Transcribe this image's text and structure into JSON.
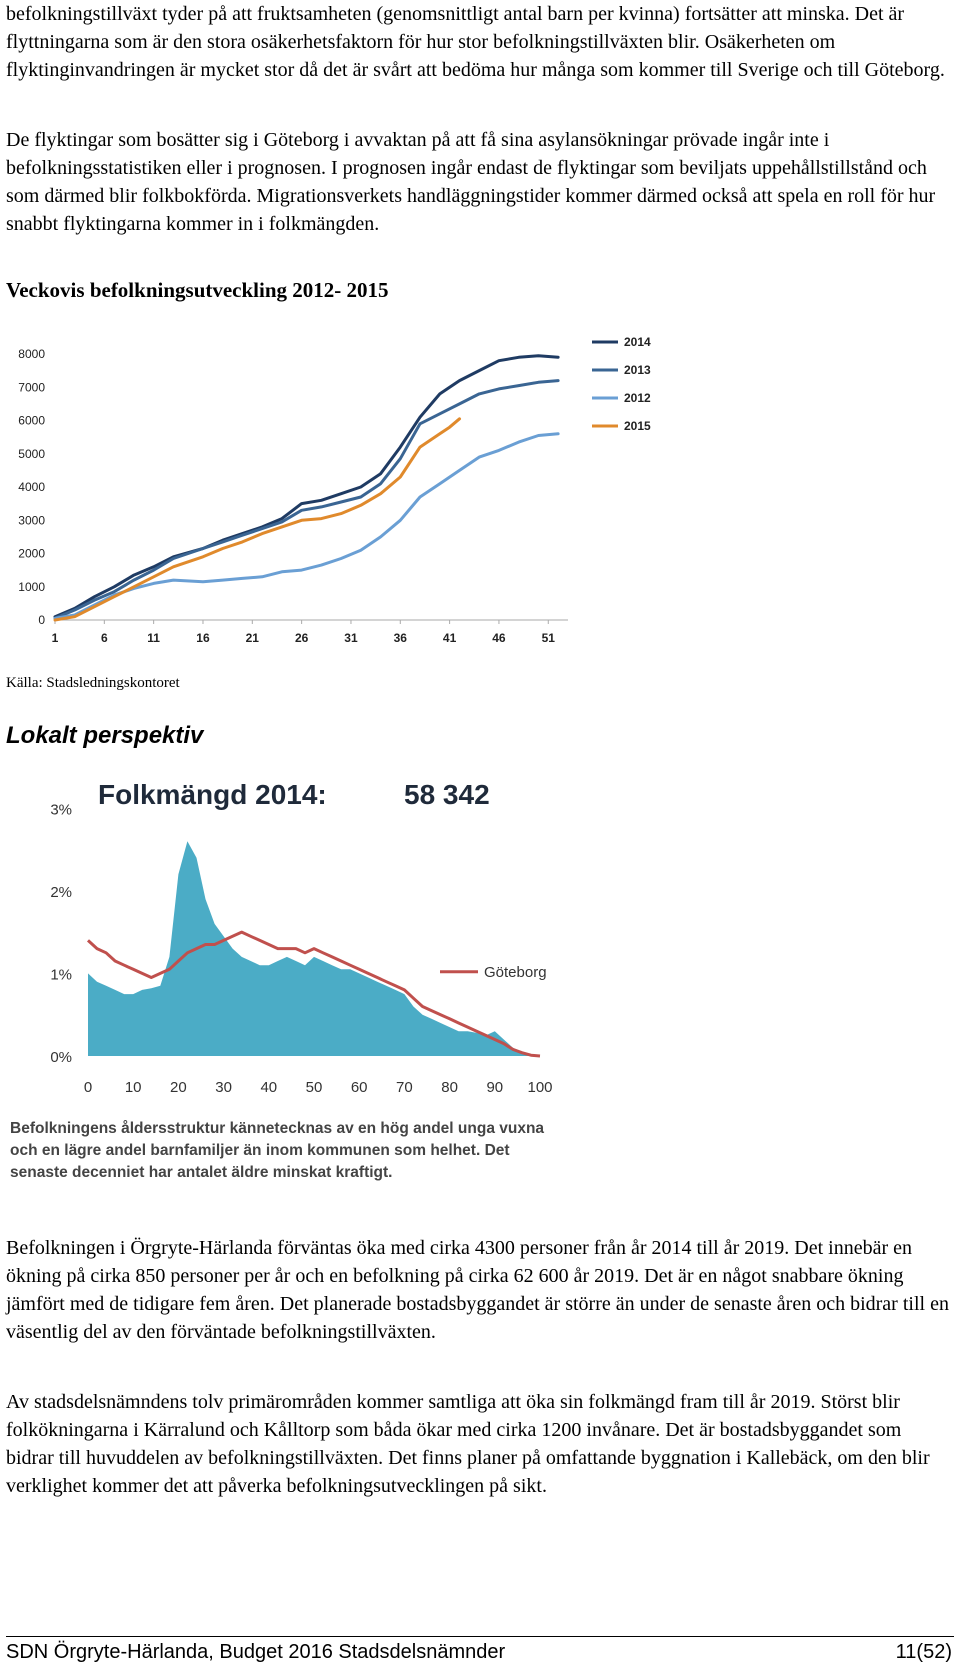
{
  "paragraphs": {
    "p1": "befolkningstillväxt tyder på att fruktsamheten (genomsnittligt antal barn per kvinna) fortsätter att minska. Det är flyttningarna som är den stora osäkerhetsfaktorn för hur stor befolkningstillväxten blir. Osäkerheten om flyktinginvandringen är mycket stor då det är svårt att bedöma hur många som kommer till Sverige och till Göteborg.",
    "p2": "De flyktingar som bosätter sig i Göteborg i avvaktan på att få sina asylansökningar prövade ingår inte i befolkningsstatistiken eller i prognosen. I prognosen ingår endast de flyktingar som beviljats uppehållstillstånd och som därmed blir folkbokförda. Migrationsverkets handläggningstider kommer därmed också att spela en roll för hur snabbt flyktingarna kommer in i folkmängden.",
    "p3": "Befolkningen i Örgryte-Härlanda förväntas öka med cirka 4300 personer från år 2014 till år 2019. Det innebär en ökning på cirka 850 personer per år och en befolkning på cirka 62 600 år 2019. Det är en något snabbare ökning jämfört med de tidigare fem åren. Det planerade bostadsbyggandet är större än under de senaste åren och bidrar till en väsentlig del av den förväntade befolkningstillväxten.",
    "p4": "Av stadsdelsnämndens tolv primärområden kommer samtliga att öka sin folkmängd fram till år 2019. Störst blir folkökningarna i Kärralund och Kålltorp som båda ökar med cirka 1200 invånare. Det är bostadsbyggandet som bidrar till huvuddelen av befolkningstillväxten. Det finns planer på omfattande byggnation i Kallebäck, om den blir verklighet kommer det att påverka befolkningsutvecklingen på sikt."
  },
  "headings": {
    "weekly": "Veckovis befolkningsutveckling 2012- 2015",
    "local": "Lokalt perspektiv"
  },
  "source_note": "Källa: Stadsledningskontoret",
  "chart_data": [
    {
      "type": "line",
      "title": "",
      "x_ticks": [
        1,
        6,
        11,
        16,
        21,
        26,
        31,
        36,
        41,
        46,
        51
      ],
      "ylim": [
        0,
        8000
      ],
      "y_ticks": [
        0,
        1000,
        2000,
        3000,
        4000,
        5000,
        6000,
        7000,
        8000
      ],
      "grid": false,
      "legend_position": "right",
      "series": [
        {
          "name": "2014",
          "color": "#1f3b63",
          "x": [
            1,
            3,
            5,
            7,
            9,
            11,
            13,
            16,
            18,
            20,
            22,
            24,
            26,
            28,
            30,
            32,
            34,
            36,
            38,
            40,
            42,
            44,
            46,
            48,
            50,
            52
          ],
          "values": [
            100,
            350,
            700,
            1000,
            1350,
            1600,
            1900,
            2150,
            2400,
            2600,
            2800,
            3050,
            3500,
            3600,
            3800,
            4000,
            4400,
            5200,
            6100,
            6800,
            7200,
            7500,
            7800,
            7900,
            7950,
            7900
          ]
        },
        {
          "name": "2013",
          "color": "#3a6593",
          "x": [
            1,
            3,
            5,
            7,
            9,
            11,
            13,
            16,
            18,
            20,
            22,
            24,
            26,
            28,
            30,
            32,
            34,
            36,
            38,
            40,
            42,
            44,
            46,
            48,
            50,
            52
          ],
          "values": [
            50,
            300,
            600,
            850,
            1200,
            1500,
            1850,
            2150,
            2350,
            2550,
            2750,
            2950,
            3300,
            3400,
            3550,
            3700,
            4100,
            4850,
            5900,
            6200,
            6500,
            6800,
            6950,
            7050,
            7150,
            7200
          ]
        },
        {
          "name": "2012",
          "color": "#6a9fd4",
          "x": [
            1,
            3,
            5,
            7,
            9,
            11,
            13,
            16,
            18,
            20,
            22,
            24,
            26,
            28,
            30,
            32,
            34,
            36,
            38,
            40,
            42,
            44,
            46,
            48,
            50,
            52
          ],
          "values": [
            50,
            150,
            450,
            750,
            950,
            1100,
            1200,
            1150,
            1200,
            1250,
            1300,
            1450,
            1500,
            1650,
            1850,
            2100,
            2500,
            3000,
            3700,
            4100,
            4500,
            4900,
            5100,
            5350,
            5550,
            5600
          ]
        },
        {
          "name": "2015",
          "color": "#e08a2c",
          "x": [
            1,
            3,
            5,
            7,
            9,
            11,
            13,
            16,
            18,
            20,
            22,
            24,
            26,
            28,
            30,
            32,
            34,
            36,
            38,
            40,
            41,
            42
          ],
          "values": [
            0,
            100,
            400,
            700,
            1000,
            1300,
            1600,
            1900,
            2150,
            2350,
            2600,
            2800,
            3000,
            3050,
            3200,
            3450,
            3800,
            4300,
            5200,
            5600,
            5800,
            6050
          ]
        }
      ]
    },
    {
      "type": "area",
      "title": "Folkmängd 2014:",
      "title_value": "58 342",
      "x_ticks": [
        0,
        10,
        20,
        30,
        40,
        50,
        60,
        70,
        80,
        90,
        100
      ],
      "y_ticks": [
        "0%",
        "1%",
        "2%",
        "3%"
      ],
      "ylim": [
        0,
        3.1
      ],
      "grid": false,
      "series": [
        {
          "name": "",
          "kind": "area",
          "color": "#4bacc6",
          "x": [
            0,
            2,
            4,
            6,
            8,
            10,
            12,
            14,
            16,
            18,
            20,
            22,
            24,
            26,
            28,
            30,
            32,
            34,
            36,
            38,
            40,
            42,
            44,
            46,
            48,
            50,
            52,
            54,
            56,
            58,
            60,
            62,
            64,
            66,
            68,
            70,
            72,
            74,
            76,
            78,
            80,
            82,
            84,
            86,
            88,
            90,
            92,
            94,
            96,
            98,
            100
          ],
          "values": [
            1.0,
            0.9,
            0.85,
            0.8,
            0.75,
            0.75,
            0.8,
            0.82,
            0.85,
            1.2,
            2.2,
            2.6,
            2.4,
            1.9,
            1.6,
            1.45,
            1.3,
            1.2,
            1.15,
            1.1,
            1.1,
            1.15,
            1.2,
            1.15,
            1.1,
            1.2,
            1.15,
            1.1,
            1.05,
            1.05,
            1.0,
            0.95,
            0.9,
            0.85,
            0.8,
            0.75,
            0.6,
            0.5,
            0.45,
            0.4,
            0.35,
            0.3,
            0.3,
            0.28,
            0.25,
            0.3,
            0.2,
            0.1,
            0.05,
            0.02,
            0.0
          ]
        },
        {
          "name": "Göteborg",
          "kind": "line",
          "color": "#c0504d",
          "x": [
            0,
            2,
            4,
            6,
            8,
            10,
            12,
            14,
            16,
            18,
            20,
            22,
            24,
            26,
            28,
            30,
            32,
            34,
            36,
            38,
            40,
            42,
            44,
            46,
            48,
            50,
            52,
            54,
            56,
            58,
            60,
            62,
            64,
            66,
            68,
            70,
            72,
            74,
            76,
            78,
            80,
            82,
            84,
            86,
            88,
            90,
            92,
            94,
            96,
            98,
            100
          ],
          "values": [
            1.4,
            1.3,
            1.25,
            1.15,
            1.1,
            1.05,
            1.0,
            0.95,
            1.0,
            1.05,
            1.15,
            1.25,
            1.3,
            1.35,
            1.35,
            1.4,
            1.45,
            1.5,
            1.45,
            1.4,
            1.35,
            1.3,
            1.3,
            1.3,
            1.25,
            1.3,
            1.25,
            1.2,
            1.15,
            1.1,
            1.05,
            1.0,
            0.95,
            0.9,
            0.85,
            0.8,
            0.7,
            0.6,
            0.55,
            0.5,
            0.45,
            0.4,
            0.35,
            0.3,
            0.25,
            0.2,
            0.15,
            0.08,
            0.04,
            0.01,
            0.0
          ]
        }
      ],
      "caption": [
        "Befolkningens åldersstruktur kännetecknas av en hög andel unga vuxna",
        "och en lägre andel barnfamiljer än inom kommunen som helhet. Det",
        "senaste decenniet har antalet äldre minskat kraftigt."
      ]
    }
  ],
  "footer": {
    "left": "SDN Örgryte-Härlanda, Budget 2016 Stadsdelsnämnder",
    "right": "11(52)"
  }
}
